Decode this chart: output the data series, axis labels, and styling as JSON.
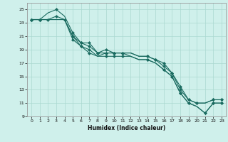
{
  "xlabel": "Humidex (Indice chaleur)",
  "bg_color": "#cff0eb",
  "grid_color": "#aad8d0",
  "line_color": "#1a6b60",
  "xlim": [
    -0.5,
    23.5
  ],
  "ylim": [
    9,
    26
  ],
  "xticks": [
    0,
    1,
    2,
    3,
    4,
    5,
    6,
    7,
    8,
    9,
    10,
    11,
    12,
    13,
    14,
    15,
    16,
    17,
    18,
    19,
    20,
    21,
    22,
    23
  ],
  "yticks": [
    9,
    11,
    13,
    15,
    17,
    19,
    21,
    23,
    25
  ],
  "series": [
    {
      "x": [
        0,
        1,
        2,
        3,
        4,
        5,
        6,
        7,
        8,
        9,
        10,
        11,
        12,
        13,
        14,
        15,
        16,
        17,
        18,
        19,
        20,
        21,
        22,
        23
      ],
      "y": [
        23.5,
        23.5,
        24.5,
        25.0,
        24.0,
        21.5,
        20.0,
        20.0,
        18.5,
        19.0,
        18.5,
        18.5,
        18.5,
        18.0,
        18.0,
        17.5,
        17.0,
        15.5,
        13.5,
        11.5,
        11.0,
        11.0,
        11.5,
        11.5
      ]
    },
    {
      "x": [
        0,
        1,
        2,
        3,
        4,
        5,
        6,
        7,
        8,
        9,
        10,
        11,
        12,
        13,
        14,
        15,
        16,
        17,
        18,
        19,
        20,
        21,
        22,
        23
      ],
      "y": [
        23.5,
        23.5,
        23.5,
        24.0,
        23.5,
        21.0,
        20.0,
        19.5,
        18.5,
        18.5,
        18.5,
        18.5,
        18.5,
        18.0,
        18.0,
        17.5,
        16.5,
        15.5,
        13.0,
        11.5,
        11.0,
        11.0,
        11.5,
        11.5
      ]
    },
    {
      "x": [
        0,
        1,
        2,
        3,
        4,
        5,
        6,
        7,
        8,
        9,
        10,
        11,
        12,
        13,
        14,
        15,
        16,
        17,
        18,
        19,
        20,
        21,
        22,
        23
      ],
      "y": [
        23.5,
        23.5,
        23.5,
        23.5,
        23.5,
        21.0,
        19.5,
        19.0,
        18.0,
        18.5,
        18.5,
        18.5,
        18.0,
        17.5,
        17.5,
        17.0,
        16.0,
        15.0,
        12.5,
        11.0,
        10.5,
        9.5,
        11.0,
        11.0
      ]
    },
    {
      "x": [
        0,
        1,
        2,
        3,
        4,
        5,
        6,
        7,
        8,
        9,
        10,
        11,
        12,
        13,
        14,
        15,
        16,
        17,
        18,
        19,
        20,
        21,
        22,
        23
      ],
      "y": [
        23.5,
        23.5,
        23.5,
        23.5,
        23.5,
        20.5,
        19.5,
        18.5,
        18.0,
        18.0,
        18.0,
        18.0,
        18.0,
        17.5,
        17.5,
        17.0,
        16.0,
        15.0,
        12.5,
        11.0,
        10.5,
        9.5,
        11.0,
        11.0
      ]
    }
  ],
  "marker_series": [
    {
      "x": [
        0,
        1,
        3,
        5,
        6,
        7,
        8,
        9,
        10,
        11,
        14,
        15,
        16,
        17,
        18,
        19,
        20,
        22,
        23
      ],
      "y": [
        23.5,
        23.5,
        25.0,
        21.5,
        20.0,
        20.0,
        18.5,
        19.0,
        18.5,
        18.5,
        18.0,
        17.5,
        17.0,
        15.5,
        13.5,
        11.5,
        11.0,
        11.5,
        11.5
      ]
    },
    {
      "x": [
        0,
        1,
        2,
        3,
        4,
        5,
        6,
        7,
        8,
        9,
        10,
        11,
        14,
        15,
        16,
        17,
        18,
        19,
        20,
        22,
        23
      ],
      "y": [
        23.5,
        23.5,
        23.5,
        24.0,
        23.5,
        21.0,
        20.0,
        19.5,
        18.5,
        18.5,
        18.5,
        18.5,
        18.0,
        17.5,
        16.5,
        15.5,
        13.0,
        11.5,
        11.0,
        11.5,
        11.5
      ]
    },
    {
      "x": [
        0,
        1,
        5,
        6,
        7,
        9,
        10,
        11,
        14,
        16,
        17,
        18,
        19,
        21,
        22,
        23
      ],
      "y": [
        23.5,
        23.5,
        21.0,
        19.5,
        19.0,
        18.5,
        18.5,
        18.5,
        17.5,
        16.0,
        15.0,
        12.5,
        11.0,
        9.5,
        11.0,
        11.0
      ]
    },
    {
      "x": [
        0,
        1,
        5,
        6,
        7,
        9,
        10,
        11,
        14,
        16,
        17,
        18,
        19,
        21,
        22,
        23
      ],
      "y": [
        23.5,
        23.5,
        20.5,
        19.5,
        18.5,
        18.0,
        18.0,
        18.0,
        17.5,
        16.0,
        15.0,
        12.5,
        11.0,
        9.5,
        11.0,
        11.0
      ]
    }
  ]
}
